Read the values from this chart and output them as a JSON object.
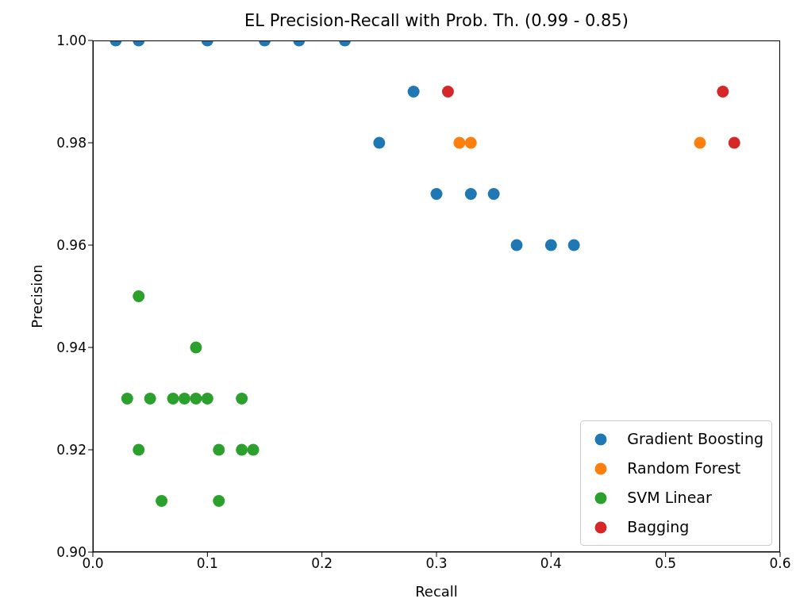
{
  "chart_data": {
    "type": "scatter",
    "title": "EL Precision-Recall with Prob. Th. (0.99 - 0.85)",
    "xlabel": "Recall",
    "ylabel": "Precision",
    "series": [
      {
        "name": "Gradient Boosting",
        "color": "#1f77b4",
        "x": [
          0.02,
          0.04,
          0.1,
          0.15,
          0.18,
          0.22,
          0.28,
          0.25,
          0.3,
          0.33,
          0.35,
          0.37,
          0.4,
          0.42
        ],
        "values": [
          1.0,
          1.0,
          1.0,
          1.0,
          1.0,
          1.0,
          0.99,
          0.98,
          0.97,
          0.97,
          0.97,
          0.96,
          0.96,
          0.96
        ]
      },
      {
        "name": "Random Forest",
        "color": "#ff7f0e",
        "x": [
          0.32,
          0.33,
          0.53
        ],
        "values": [
          0.98,
          0.98,
          0.98
        ]
      },
      {
        "name": "SVM Linear",
        "color": "#2ca02c",
        "x": [
          0.04,
          0.09,
          0.03,
          0.05,
          0.07,
          0.08,
          0.09,
          0.1,
          0.13,
          0.04,
          0.11,
          0.13,
          0.14,
          0.06,
          0.11
        ],
        "values": [
          0.95,
          0.94,
          0.93,
          0.93,
          0.93,
          0.93,
          0.93,
          0.93,
          0.93,
          0.92,
          0.92,
          0.92,
          0.92,
          0.91,
          0.91
        ]
      },
      {
        "name": "Bagging",
        "color": "#d62728",
        "x": [
          0.31,
          0.55,
          0.56
        ],
        "values": [
          0.99,
          0.99,
          0.98
        ]
      }
    ],
    "xlim": [
      0,
      0.6
    ],
    "xticks": [
      {
        "value": 0,
        "label": "0.0"
      },
      {
        "value": 0.1,
        "label": "0.1"
      },
      {
        "value": 0.2,
        "label": "0.2"
      },
      {
        "value": 0.3,
        "label": "0.3"
      },
      {
        "value": 0.4,
        "label": "0.4"
      },
      {
        "value": 0.5,
        "label": "0.5"
      },
      {
        "value": 0.6,
        "label": "0.6"
      }
    ],
    "ylim": [
      0.9,
      1.0
    ],
    "yticks": [
      {
        "value": 0.9,
        "label": "0.90"
      },
      {
        "value": 0.92,
        "label": "0.92"
      },
      {
        "value": 0.94,
        "label": "0.94"
      },
      {
        "value": 0.96,
        "label": "0.96"
      },
      {
        "value": 0.98,
        "label": "0.98"
      },
      {
        "value": 1.0,
        "label": "1.00"
      }
    ],
    "legend": "bottom right",
    "marker": "circle"
  }
}
